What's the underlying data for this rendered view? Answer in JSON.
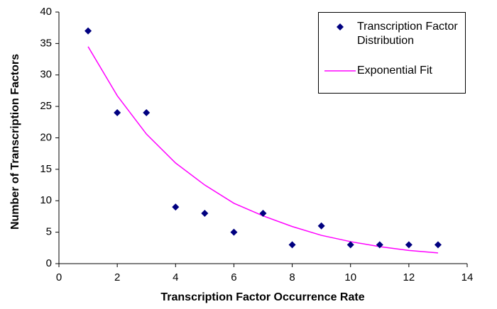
{
  "chart_data": {
    "type": "scatter",
    "x_label": "Transcription Factor Occurrence Rate",
    "y_label": "Number of Transcription Factors",
    "xlim": [
      0,
      14
    ],
    "xticks": [
      0,
      2,
      4,
      6,
      8,
      10,
      12,
      14
    ],
    "ylim": [
      0,
      40
    ],
    "yticks": [
      0,
      5,
      10,
      15,
      20,
      25,
      30,
      35,
      40
    ],
    "grid": false,
    "legend": "top-right",
    "series": [
      {
        "name": "Transcription Factor Distribution",
        "type": "scatter",
        "color": "#000080",
        "x": [
          1,
          2,
          3,
          4,
          5,
          6,
          7,
          8,
          9,
          10,
          11,
          12,
          13
        ],
        "values": [
          37,
          24,
          24,
          9,
          8,
          5,
          8,
          3,
          6,
          3,
          3,
          3,
          3
        ]
      },
      {
        "name": "Exponential Fit",
        "type": "line",
        "color": "#ff00ff",
        "x": [
          1,
          2,
          3,
          4,
          5,
          6,
          7,
          8,
          9,
          10,
          11,
          12,
          13
        ],
        "values": [
          34.5,
          26.7,
          20.6,
          16,
          12.5,
          9.6,
          7.6,
          5.9,
          4.5,
          3.5,
          2.7,
          2.1,
          1.7
        ]
      }
    ]
  }
}
